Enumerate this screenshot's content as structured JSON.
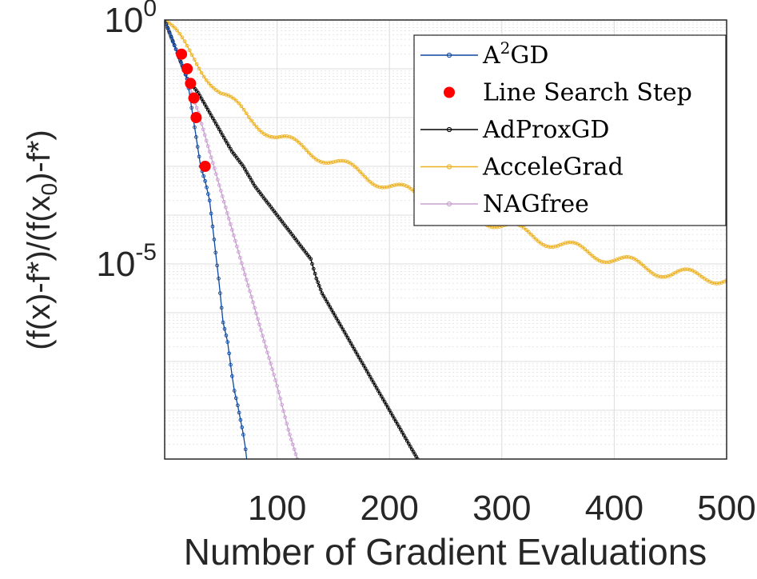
{
  "chart_data": {
    "type": "line",
    "title": "",
    "xlabel": "Number of Gradient Evaluations",
    "ylabel": "(f(x)-f*)/(f(x_0)-f*)",
    "y_scale": "log",
    "xlim": [
      0,
      500
    ],
    "ylim_log10": [
      -9,
      0
    ],
    "x_ticks": [
      100,
      200,
      300,
      400,
      500
    ],
    "y_ticks_labeled": [
      {
        "base": "10",
        "exp": "0",
        "value": 1
      },
      {
        "base": "10",
        "exp": "-5",
        "value": 1e-05
      }
    ],
    "grid": true,
    "legend_position": "top-right",
    "series": [
      {
        "name": "A²GD",
        "legend_label": "A",
        "legend_sup": "2",
        "legend_suffix": "GD",
        "color": "#0d47a1",
        "marker": "open-circle",
        "x": [
          0,
          5,
          10,
          15,
          20,
          24,
          28,
          32,
          36,
          40,
          44,
          48,
          52,
          56,
          60,
          62,
          65,
          70,
          72,
          74
        ],
        "log10y": [
          0,
          -0.3,
          -0.6,
          -0.9,
          -1.2,
          -1.8,
          -2.4,
          -3.0,
          -3.3,
          -3.7,
          -4.5,
          -5.3,
          -6.2,
          -6.6,
          -7.3,
          -7.6,
          -7.9,
          -8.5,
          -8.8,
          -9.2
        ]
      },
      {
        "name": "Line Search Step",
        "color": "#ff0000",
        "marker": "filled-dot",
        "x": [
          15,
          20,
          23,
          26,
          28,
          36
        ],
        "log10y": [
          -0.7,
          -1.0,
          -1.3,
          -1.6,
          -2.0,
          -3.0
        ]
      },
      {
        "name": "AdProxGD",
        "color": "#000000",
        "marker": "open-circle",
        "x": [
          0,
          10,
          20,
          30,
          40,
          50,
          60,
          70,
          80,
          90,
          100,
          110,
          120,
          130,
          135,
          140,
          150,
          160,
          170,
          180,
          190,
          200,
          210,
          220,
          225
        ],
        "log10y": [
          0,
          -0.6,
          -1.2,
          -1.5,
          -1.9,
          -2.3,
          -2.7,
          -3.0,
          -3.4,
          -3.7,
          -4.0,
          -4.3,
          -4.6,
          -4.9,
          -5.3,
          -5.6,
          -6.0,
          -6.4,
          -6.8,
          -7.2,
          -7.6,
          -8.0,
          -8.4,
          -8.8,
          -9.0
        ]
      },
      {
        "name": "AcceleGrad",
        "color": "#edb120",
        "marker": "open-circle",
        "x": [
          0,
          20,
          50,
          75,
          100,
          150,
          200,
          250,
          300,
          350,
          400,
          450,
          500
        ],
        "log10y": [
          0,
          -0.6,
          -1.5,
          -2.0,
          -2.4,
          -2.9,
          -3.4,
          -3.8,
          -4.2,
          -4.6,
          -4.9,
          -5.2,
          -5.3
        ]
      },
      {
        "name": "NAGfree",
        "color": "#c8a0cf",
        "marker": "open-circle",
        "x": [
          0,
          10,
          20,
          30,
          40,
          50,
          60,
          70,
          80,
          90,
          100,
          110,
          118
        ],
        "log10y": [
          0,
          -0.6,
          -1.2,
          -1.9,
          -2.7,
          -3.5,
          -4.3,
          -5.1,
          -5.9,
          -6.7,
          -7.5,
          -8.4,
          -9.0
        ]
      }
    ]
  }
}
